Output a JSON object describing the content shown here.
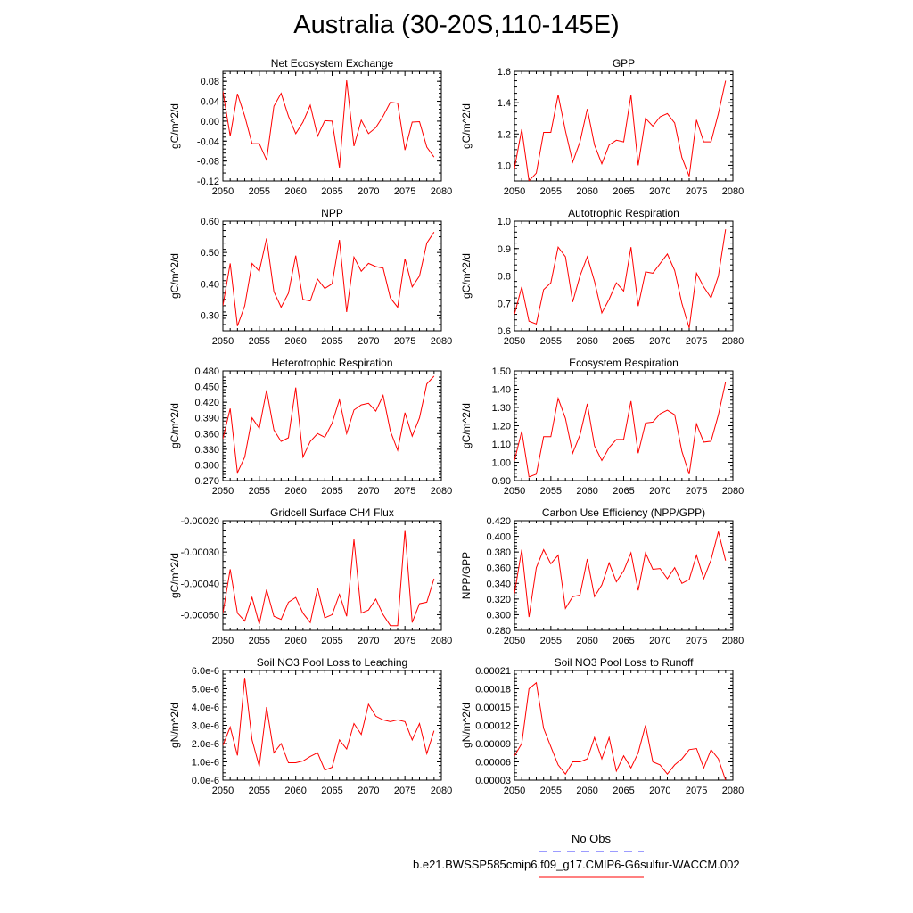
{
  "title": "Australia (30-20S,110-145E)",
  "colors": {
    "series": "#ff0000",
    "obs": "#3a3aff",
    "axis": "#000000"
  },
  "legend": {
    "obs_label": "No Obs",
    "model_label": "b.e21.BWSSP585cmip6.f09_g17.CMIP6-G6sulfur-WACCM.002"
  },
  "chart_data": [
    {
      "type": "line",
      "title": "Net Ecosystem Exchange",
      "ylabel": "gC/m^2/d",
      "xlim": [
        2050,
        2080
      ],
      "ylim": [
        -0.12,
        0.1
      ],
      "yticks": [
        "0.08",
        "0.04",
        "0.00",
        "-0.04",
        "-0.08",
        "-0.12"
      ],
      "ytick_values": [
        0.08,
        0.04,
        0.0,
        -0.04,
        -0.08,
        -0.12
      ],
      "xticks": [
        "2050",
        "2055",
        "2060",
        "2065",
        "2070",
        "2075",
        "2080"
      ],
      "x": [
        2050,
        2051,
        2052,
        2053,
        2054,
        2055,
        2056,
        2057,
        2058,
        2059,
        2060,
        2061,
        2062,
        2063,
        2064,
        2065,
        2066,
        2067,
        2068,
        2069,
        2070,
        2071,
        2072,
        2073,
        2074,
        2075,
        2076,
        2077,
        2078,
        2079
      ],
      "values": [
        0.06,
        -0.03,
        0.055,
        0.01,
        -0.045,
        -0.045,
        -0.078,
        0.03,
        0.056,
        0.01,
        -0.025,
        -0.002,
        0.032,
        -0.03,
        0.001,
        0.0,
        -0.093,
        0.082,
        -0.05,
        0.002,
        -0.025,
        -0.013,
        0.01,
        0.038,
        0.036,
        -0.058,
        -0.002,
        -0.001,
        -0.052,
        -0.072
      ]
    },
    {
      "type": "line",
      "title": "GPP",
      "ylabel": "gC/m^2/d",
      "xlim": [
        2050,
        2080
      ],
      "ylim": [
        0.9,
        1.6
      ],
      "yticks": [
        "1.6",
        "1.4",
        "1.2",
        "1.0"
      ],
      "ytick_values": [
        1.6,
        1.4,
        1.2,
        1.0
      ],
      "xticks": [
        "2050",
        "2055",
        "2060",
        "2065",
        "2070",
        "2075",
        "2080"
      ],
      "x": [
        2050,
        2051,
        2052,
        2053,
        2054,
        2055,
        2056,
        2057,
        2058,
        2059,
        2060,
        2061,
        2062,
        2063,
        2064,
        2065,
        2066,
        2067,
        2068,
        2069,
        2070,
        2071,
        2072,
        2073,
        2074,
        2075,
        2076,
        2077,
        2078,
        2079
      ],
      "values": [
        0.98,
        1.23,
        0.9,
        0.95,
        1.21,
        1.21,
        1.45,
        1.22,
        1.02,
        1.15,
        1.36,
        1.13,
        1.01,
        1.13,
        1.16,
        1.15,
        1.45,
        1.0,
        1.3,
        1.25,
        1.31,
        1.33,
        1.27,
        1.05,
        0.93,
        1.29,
        1.15,
        1.15,
        1.33,
        1.54
      ]
    },
    {
      "type": "line",
      "title": "NPP",
      "ylabel": "gC/m^2/d",
      "xlim": [
        2050,
        2080
      ],
      "ylim": [
        0.25,
        0.6
      ],
      "yticks": [
        "0.60",
        "0.50",
        "0.40",
        "0.30"
      ],
      "ytick_values": [
        0.6,
        0.5,
        0.4,
        0.3
      ],
      "xticks": [
        "2050",
        "2055",
        "2060",
        "2065",
        "2070",
        "2075",
        "2080"
      ],
      "x": [
        2050,
        2051,
        2052,
        2053,
        2054,
        2055,
        2056,
        2057,
        2058,
        2059,
        2060,
        2061,
        2062,
        2063,
        2064,
        2065,
        2066,
        2067,
        2068,
        2069,
        2070,
        2071,
        2072,
        2073,
        2074,
        2075,
        2076,
        2077,
        2078,
        2079
      ],
      "values": [
        0.33,
        0.465,
        0.265,
        0.33,
        0.465,
        0.44,
        0.545,
        0.375,
        0.325,
        0.37,
        0.49,
        0.35,
        0.345,
        0.415,
        0.385,
        0.4,
        0.54,
        0.31,
        0.485,
        0.44,
        0.465,
        0.455,
        0.45,
        0.355,
        0.325,
        0.48,
        0.39,
        0.425,
        0.53,
        0.565
      ]
    },
    {
      "type": "line",
      "title": "Autotrophic Respiration",
      "ylabel": "gC/m^2/d",
      "xlim": [
        2050,
        2080
      ],
      "ylim": [
        0.6,
        1.0
      ],
      "yticks": [
        "1.0",
        "0.9",
        "0.8",
        "0.7",
        "0.6"
      ],
      "ytick_values": [
        1.0,
        0.9,
        0.8,
        0.7,
        0.6
      ],
      "xticks": [
        "2050",
        "2055",
        "2060",
        "2065",
        "2070",
        "2075",
        "2080"
      ],
      "x": [
        2050,
        2051,
        2052,
        2053,
        2054,
        2055,
        2056,
        2057,
        2058,
        2059,
        2060,
        2061,
        2062,
        2063,
        2064,
        2065,
        2066,
        2067,
        2068,
        2069,
        2070,
        2071,
        2072,
        2073,
        2074,
        2075,
        2076,
        2077,
        2078,
        2079
      ],
      "values": [
        0.66,
        0.76,
        0.635,
        0.625,
        0.75,
        0.775,
        0.905,
        0.87,
        0.705,
        0.8,
        0.87,
        0.78,
        0.665,
        0.715,
        0.775,
        0.745,
        0.905,
        0.69,
        0.815,
        0.81,
        0.845,
        0.88,
        0.82,
        0.7,
        0.61,
        0.81,
        0.76,
        0.72,
        0.8,
        0.97
      ]
    },
    {
      "type": "line",
      "title": "Heterotrophic Respiration",
      "ylabel": "gC/m^2/d",
      "xlim": [
        2050,
        2080
      ],
      "ylim": [
        0.27,
        0.48
      ],
      "yticks": [
        "0.480",
        "0.450",
        "0.420",
        "0.390",
        "0.360",
        "0.330",
        "0.300",
        "0.270"
      ],
      "ytick_values": [
        0.48,
        0.45,
        0.42,
        0.39,
        0.36,
        0.33,
        0.3,
        0.27
      ],
      "xticks": [
        "2050",
        "2055",
        "2060",
        "2065",
        "2070",
        "2075",
        "2080"
      ],
      "x": [
        2050,
        2051,
        2052,
        2053,
        2054,
        2055,
        2056,
        2057,
        2058,
        2059,
        2060,
        2061,
        2062,
        2063,
        2064,
        2065,
        2066,
        2067,
        2068,
        2069,
        2070,
        2071,
        2072,
        2073,
        2074,
        2075,
        2076,
        2077,
        2078,
        2079
      ],
      "values": [
        0.35,
        0.408,
        0.285,
        0.315,
        0.39,
        0.37,
        0.443,
        0.367,
        0.345,
        0.352,
        0.448,
        0.315,
        0.345,
        0.36,
        0.353,
        0.38,
        0.425,
        0.36,
        0.405,
        0.415,
        0.418,
        0.403,
        0.433,
        0.365,
        0.328,
        0.4,
        0.355,
        0.39,
        0.455,
        0.47
      ]
    },
    {
      "type": "line",
      "title": "Ecosystem Respiration",
      "ylabel": "gC/m^2/d",
      "xlim": [
        2050,
        2080
      ],
      "ylim": [
        0.9,
        1.5
      ],
      "yticks": [
        "1.50",
        "1.40",
        "1.30",
        "1.20",
        "1.10",
        "1.00",
        "0.90"
      ],
      "ytick_values": [
        1.5,
        1.4,
        1.3,
        1.2,
        1.1,
        1.0,
        0.9
      ],
      "xticks": [
        "2050",
        "2055",
        "2060",
        "2065",
        "2070",
        "2075",
        "2080"
      ],
      "x": [
        2050,
        2051,
        2052,
        2053,
        2054,
        2055,
        2056,
        2057,
        2058,
        2059,
        2060,
        2061,
        2062,
        2063,
        2064,
        2065,
        2066,
        2067,
        2068,
        2069,
        2070,
        2071,
        2072,
        2073,
        2074,
        2075,
        2076,
        2077,
        2078,
        2079
      ],
      "values": [
        1.01,
        1.17,
        0.92,
        0.935,
        1.14,
        1.14,
        1.35,
        1.24,
        1.05,
        1.15,
        1.32,
        1.09,
        1.01,
        1.08,
        1.125,
        1.125,
        1.335,
        1.05,
        1.215,
        1.22,
        1.265,
        1.285,
        1.26,
        1.06,
        0.935,
        1.21,
        1.11,
        1.115,
        1.26,
        1.44
      ]
    },
    {
      "type": "line",
      "title": "Gridcell Surface CH4 Flux",
      "ylabel": "gC/m^2/d",
      "xlim": [
        2050,
        2080
      ],
      "ylim": [
        -0.00055,
        -0.0002
      ],
      "yticks": [
        "-0.00020",
        "-0.00030",
        "-0.00040",
        "-0.00050"
      ],
      "ytick_values": [
        -0.0002,
        -0.0003,
        -0.0004,
        -0.0005
      ],
      "xticks": [
        "2050",
        "2055",
        "2060",
        "2065",
        "2070",
        "2075",
        "2080"
      ],
      "x": [
        2050,
        2051,
        2052,
        2053,
        2054,
        2055,
        2056,
        2057,
        2058,
        2059,
        2060,
        2061,
        2062,
        2063,
        2064,
        2065,
        2066,
        2067,
        2068,
        2069,
        2070,
        2071,
        2072,
        2073,
        2074,
        2075,
        2076,
        2077,
        2078,
        2079
      ],
      "values": [
        -0.000495,
        -0.000355,
        -0.000495,
        -0.00052,
        -0.000445,
        -0.00053,
        -0.00042,
        -0.000505,
        -0.000515,
        -0.00046,
        -0.000445,
        -0.000495,
        -0.000525,
        -0.000415,
        -0.00051,
        -0.0005,
        -0.000435,
        -0.000505,
        -0.00026,
        -0.000495,
        -0.000485,
        -0.00045,
        -0.0005,
        -0.000535,
        -0.000535,
        -0.00023,
        -0.000525,
        -0.000465,
        -0.00046,
        -0.000385
      ]
    },
    {
      "type": "line",
      "title": "Carbon Use Efficiency (NPP/GPP)",
      "ylabel": "NPP/GPP",
      "xlim": [
        2050,
        2080
      ],
      "ylim": [
        0.28,
        0.42
      ],
      "yticks": [
        "0.420",
        "0.400",
        "0.380",
        "0.360",
        "0.340",
        "0.320",
        "0.300",
        "0.280"
      ],
      "ytick_values": [
        0.42,
        0.4,
        0.38,
        0.36,
        0.34,
        0.32,
        0.3,
        0.28
      ],
      "xticks": [
        "2050",
        "2055",
        "2060",
        "2065",
        "2070",
        "2075",
        "2080"
      ],
      "x": [
        2050,
        2051,
        2052,
        2053,
        2054,
        2055,
        2056,
        2057,
        2058,
        2059,
        2060,
        2061,
        2062,
        2063,
        2064,
        2065,
        2066,
        2067,
        2068,
        2069,
        2070,
        2071,
        2072,
        2073,
        2074,
        2075,
        2076,
        2077,
        2078,
        2079
      ],
      "values": [
        0.327,
        0.383,
        0.297,
        0.36,
        0.383,
        0.365,
        0.376,
        0.308,
        0.323,
        0.325,
        0.371,
        0.323,
        0.338,
        0.366,
        0.342,
        0.356,
        0.379,
        0.331,
        0.379,
        0.358,
        0.359,
        0.346,
        0.36,
        0.34,
        0.345,
        0.376,
        0.346,
        0.37,
        0.406,
        0.369
      ]
    },
    {
      "type": "line",
      "title": "Soil NO3 Pool Loss to Leaching",
      "ylabel": "gN/m^2/d",
      "xlim": [
        2050,
        2080
      ],
      "ylim": [
        0,
        6e-06
      ],
      "yticks": [
        "6.0e-6",
        "5.0e-6",
        "4.0e-6",
        "3.0e-6",
        "2.0e-6",
        "1.0e-6",
        "0.0e-6"
      ],
      "ytick_values": [
        6e-06,
        5e-06,
        4e-06,
        3e-06,
        2e-06,
        1e-06,
        0
      ],
      "xticks": [
        "2050",
        "2055",
        "2060",
        "2065",
        "2070",
        "2075",
        "2080"
      ],
      "x": [
        2050,
        2051,
        2052,
        2053,
        2054,
        2055,
        2056,
        2057,
        2058,
        2059,
        2060,
        2061,
        2062,
        2063,
        2064,
        2065,
        2066,
        2067,
        2068,
        2069,
        2070,
        2071,
        2072,
        2073,
        2074,
        2075,
        2076,
        2077,
        2078,
        2079
      ],
      "values": [
        1.9e-06,
        2.9e-06,
        1.35e-06,
        5.6e-06,
        2.2e-06,
        7.5e-07,
        4e-06,
        1.5e-06,
        2e-06,
        9.5e-07,
        9.5e-07,
        1.05e-06,
        1.3e-06,
        1.5e-06,
        5.5e-07,
        7e-07,
        2.2e-06,
        1.7e-06,
        3.1e-06,
        2.5e-06,
        4.15e-06,
        3.5e-06,
        3.3e-06,
        3.2e-06,
        3.3e-06,
        3.2e-06,
        2.2e-06,
        3.1e-06,
        1.45e-06,
        2.7e-06
      ]
    },
    {
      "type": "line",
      "title": "Soil NO3 Pool Loss to Runoff",
      "ylabel": "gN/m^2/d",
      "xlim": [
        2050,
        2080
      ],
      "ylim": [
        3e-05,
        0.00021
      ],
      "yticks": [
        "0.00021",
        "0.00018",
        "0.00015",
        "0.00012",
        "0.00009",
        "0.00006",
        "0.00003"
      ],
      "ytick_values": [
        0.00021,
        0.00018,
        0.00015,
        0.00012,
        9e-05,
        6e-05,
        3e-05
      ],
      "xticks": [
        "2050",
        "2055",
        "2060",
        "2065",
        "2070",
        "2075",
        "2080"
      ],
      "x": [
        2050,
        2051,
        2052,
        2053,
        2054,
        2055,
        2056,
        2057,
        2058,
        2059,
        2060,
        2061,
        2062,
        2063,
        2064,
        2065,
        2066,
        2067,
        2068,
        2069,
        2070,
        2071,
        2072,
        2073,
        2074,
        2075,
        2076,
        2077,
        2078,
        2079
      ],
      "values": [
        7e-05,
        9e-05,
        0.00018,
        0.00019,
        0.000115,
        8.5e-05,
        5.5e-05,
        4e-05,
        6e-05,
        6e-05,
        6.5e-05,
        0.0001,
        6.5e-05,
        0.0001,
        4.5e-05,
        7e-05,
        5e-05,
        7.5e-05,
        0.00012,
        6e-05,
        5.5e-05,
        4e-05,
        5.5e-05,
        6.5e-05,
        8e-05,
        8.2e-05,
        5e-05,
        8e-05,
        6.5e-05,
        3e-05
      ]
    }
  ]
}
